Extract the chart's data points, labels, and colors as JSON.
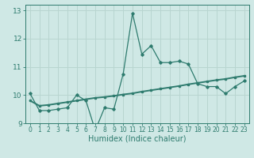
{
  "xlabel": "Humidex (Indice chaleur)",
  "bg_color": "#cfe8e5",
  "grid_color": "#b8d5d0",
  "line_color": "#2e7b6e",
  "x_data": [
    0,
    1,
    2,
    3,
    4,
    5,
    6,
    7,
    8,
    9,
    10,
    11,
    12,
    13,
    14,
    15,
    16,
    17,
    18,
    19,
    20,
    21,
    22,
    23
  ],
  "y_line1": [
    10.05,
    9.45,
    9.45,
    9.5,
    9.55,
    10.0,
    9.8,
    8.75,
    9.55,
    9.5,
    10.75,
    12.9,
    11.45,
    11.75,
    11.15,
    11.15,
    11.2,
    11.1,
    10.4,
    10.3,
    10.3,
    10.05,
    10.3,
    10.5
  ],
  "y_line2": [
    9.8,
    9.62,
    9.65,
    9.7,
    9.75,
    9.8,
    9.85,
    9.9,
    9.93,
    9.97,
    10.02,
    10.06,
    10.12,
    10.17,
    10.22,
    10.27,
    10.32,
    10.38,
    10.43,
    10.48,
    10.53,
    10.57,
    10.63,
    10.68
  ],
  "ylim": [
    9.0,
    13.2
  ],
  "xlim": [
    -0.5,
    23.5
  ],
  "yticks": [
    9,
    10,
    11,
    12,
    13
  ],
  "xticks": [
    0,
    1,
    2,
    3,
    4,
    5,
    6,
    7,
    8,
    9,
    10,
    11,
    12,
    13,
    14,
    15,
    16,
    17,
    18,
    19,
    20,
    21,
    22,
    23
  ],
  "xlabel_fontsize": 7,
  "tick_fontsize": 5.5,
  "ytick_fontsize": 6.5
}
